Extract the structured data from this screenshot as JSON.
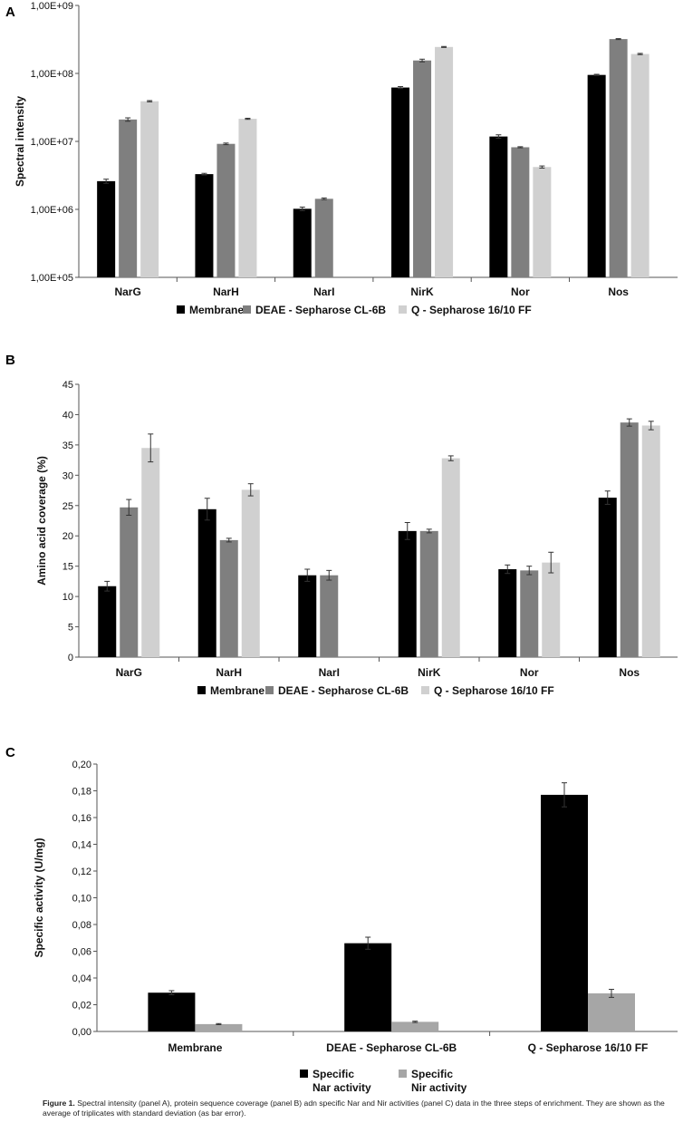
{
  "figure": {
    "caption_label": "Figure 1.",
    "caption_text": " Spectral intensity (panel A), protein sequence coverage (panel B) adn specific Nar and  Nir activities (panel C) data in the three steps of enrichment. They are shown as the average of triplicates with standard deviation (as bar error)."
  },
  "chart_data": [
    {
      "id": "A",
      "panel_label": "A",
      "type": "bar",
      "scale": "log",
      "ylabel": "Spectral intensity",
      "xlabel": "",
      "ylim": [
        100000,
        1000000000
      ],
      "yticks": [
        100000,
        1000000,
        10000000,
        100000000,
        1000000000
      ],
      "ytick_labels": [
        "1,00E+05",
        "1,00E+06",
        "1,00E+07",
        "1,00E+08",
        "1,00E+09"
      ],
      "categories": [
        "NarG",
        "NarH",
        "NarI",
        "NirK",
        "Nor",
        "Nos"
      ],
      "legend_position": "bottom",
      "colors": [
        "#000000",
        "#7f7f7f",
        "#d0d0d0"
      ],
      "series": [
        {
          "name": "Membrane",
          "values": [
            2600000,
            3300000,
            1020000,
            62000000,
            11800000,
            95000000
          ],
          "errors": [
            180000,
            90000,
            60000,
            2000000,
            700000,
            2000000
          ]
        },
        {
          "name": "DEAE - Sepharose CL-6B",
          "values": [
            21000000,
            9200000,
            1430000,
            155000000,
            8200000,
            320000000
          ],
          "errors": [
            1200000,
            250000,
            40000,
            7000000,
            150000,
            5000000
          ]
        },
        {
          "name": "Q - Sepharose 16/10 FF",
          "values": [
            39000000,
            21500000,
            null,
            245000000,
            4200000,
            193000000
          ],
          "errors": [
            800000,
            400000,
            null,
            4000000,
            150000,
            4000000
          ]
        }
      ]
    },
    {
      "id": "B",
      "panel_label": "B",
      "type": "bar",
      "scale": "linear",
      "ylabel": "Amino acid coverage (%)",
      "xlabel": "",
      "ylim": [
        0,
        45
      ],
      "yticks": [
        0,
        5,
        10,
        15,
        20,
        25,
        30,
        35,
        40,
        45
      ],
      "ytick_labels": [
        "0",
        "5",
        "10",
        "15",
        "20",
        "25",
        "30",
        "35",
        "40",
        "45"
      ],
      "categories": [
        "NarG",
        "NarH",
        "NarI",
        "NirK",
        "Nor",
        "Nos"
      ],
      "legend_position": "bottom",
      "colors": [
        "#000000",
        "#7f7f7f",
        "#d0d0d0"
      ],
      "series": [
        {
          "name": "Membrane",
          "values": [
            11.7,
            24.4,
            13.5,
            20.8,
            14.5,
            26.3
          ],
          "errors": [
            0.8,
            1.8,
            1.0,
            1.4,
            0.7,
            1.1
          ]
        },
        {
          "name": "DEAE - Sepharose CL-6B",
          "values": [
            24.7,
            19.3,
            13.5,
            20.8,
            14.3,
            38.7
          ],
          "errors": [
            1.3,
            0.3,
            0.8,
            0.3,
            0.7,
            0.6
          ]
        },
        {
          "name": "Q - Sepharose 16/10 FF",
          "values": [
            34.5,
            27.6,
            null,
            32.8,
            15.6,
            38.2
          ],
          "errors": [
            2.3,
            1.0,
            null,
            0.4,
            1.7,
            0.7
          ]
        }
      ]
    },
    {
      "id": "C",
      "panel_label": "C",
      "type": "bar",
      "scale": "linear",
      "ylabel": "Specific activity (U/mg)",
      "xlabel": "",
      "ylim": [
        0,
        0.2
      ],
      "yticks": [
        0,
        0.02,
        0.04,
        0.06,
        0.08,
        0.1,
        0.12,
        0.14,
        0.16,
        0.18,
        0.2
      ],
      "ytick_labels": [
        "0,00",
        "0,02",
        "0,04",
        "0,06",
        "0,08",
        "0,10",
        "0,12",
        "0,14",
        "0,16",
        "0,18",
        "0,20"
      ],
      "categories": [
        "Membrane",
        "DEAE - Sepharose CL-6B",
        "Q - Sepharose 16/10 FF"
      ],
      "legend_position": "bottom",
      "colors": [
        "#000000",
        "#a6a6a6"
      ],
      "series": [
        {
          "name": "Specific Nar activity",
          "legend_lines": [
            "Specific",
            "Nar activity"
          ],
          "values": [
            0.029,
            0.066,
            0.177
          ],
          "errors": [
            0.0015,
            0.0045,
            0.009
          ]
        },
        {
          "name": "Specific Nir activity",
          "legend_lines": [
            "Specific",
            "Nir activity"
          ],
          "values": [
            0.0055,
            0.0072,
            0.0285
          ],
          "errors": [
            0.0004,
            0.0005,
            0.003
          ]
        }
      ]
    }
  ]
}
